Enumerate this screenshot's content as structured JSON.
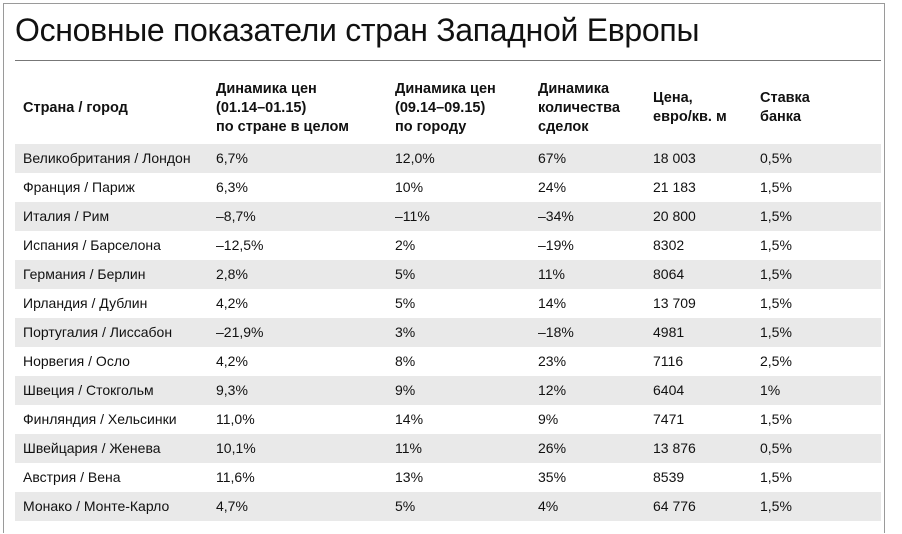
{
  "title": "Основные показатели стран Западной Европы",
  "columns": [
    {
      "lines": [
        "Страна / город"
      ]
    },
    {
      "lines": [
        "Динамика цен",
        "(01.14–01.15)",
        "по стране в целом"
      ]
    },
    {
      "lines": [
        "Динамика цен",
        "(09.14–09.15)",
        "по городу"
      ]
    },
    {
      "lines": [
        "Динамика",
        "количества",
        "сделок"
      ]
    },
    {
      "lines": [
        "Цена,",
        "евро/кв. м"
      ]
    },
    {
      "lines": [
        "Ставка",
        "банка"
      ]
    }
  ],
  "rows": [
    [
      "Великобритания / Лондон",
      "6,7%",
      "12,0%",
      "67%",
      "18 003",
      "0,5%"
    ],
    [
      "Франция / Париж",
      "6,3%",
      "10%",
      "24%",
      "21 183",
      "1,5%"
    ],
    [
      "Италия / Рим",
      "–8,7%",
      "–11%",
      "–34%",
      "20 800",
      "1,5%"
    ],
    [
      "Испания / Барселона",
      "–12,5%",
      "2%",
      "–19%",
      "8302",
      "1,5%"
    ],
    [
      "Германия / Берлин",
      "2,8%",
      "5%",
      "11%",
      "8064",
      "1,5%"
    ],
    [
      "Ирландия / Дублин",
      "4,2%",
      "5%",
      "14%",
      "13 709",
      "1,5%"
    ],
    [
      "Португалия / Лиссабон",
      "–21,9%",
      "3%",
      "–18%",
      "4981",
      "1,5%"
    ],
    [
      "Норвегия / Осло",
      "4,2%",
      "8%",
      "23%",
      "7116",
      "2,5%"
    ],
    [
      "Швеция / Стокгольм",
      "9,3%",
      "9%",
      "12%",
      "6404",
      "1%"
    ],
    [
      "Финляндия / Хельсинки",
      "11,0%",
      "14%",
      "9%",
      "7471",
      "1,5%"
    ],
    [
      "Швейцария / Женева",
      "10,1%",
      "11%",
      "26%",
      "13 876",
      "0,5%"
    ],
    [
      "Австрия / Вена",
      "11,6%",
      "13%",
      "35%",
      "8539",
      "1,5%"
    ],
    [
      "Монако / Монте-Карло",
      "4,7%",
      "5%",
      "4%",
      "64 776",
      "1,5%"
    ]
  ]
}
